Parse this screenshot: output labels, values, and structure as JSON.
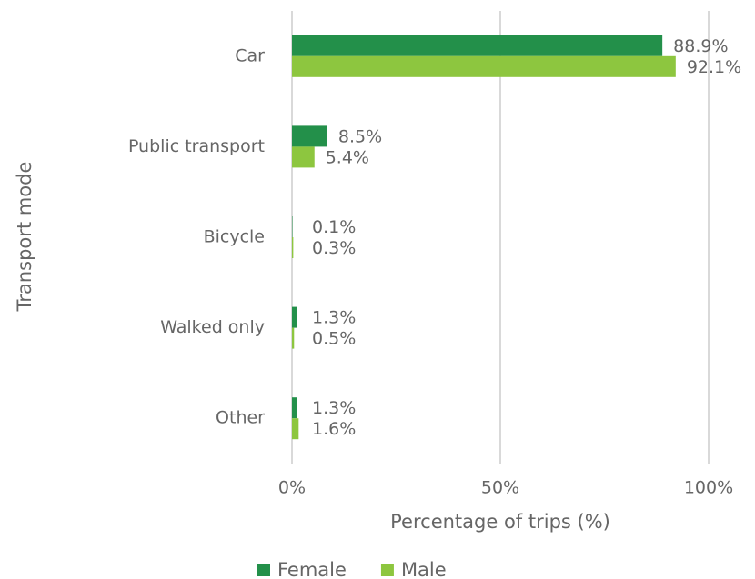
{
  "chart_data": {
    "type": "hbar",
    "x_label": "Percentage of trips (%)",
    "y_label": "Transport mode",
    "categories": [
      "Car",
      "Public transport",
      "Bicycle",
      "Walked only",
      "Other"
    ],
    "series": [
      {
        "name": "Female",
        "color": "#23904a",
        "values": [
          88.9,
          8.5,
          0.1,
          1.3,
          1.3
        ],
        "value_labels": [
          "88.9%",
          "8.5%",
          "0.1%",
          "1.3%",
          "1.3%"
        ]
      },
      {
        "name": "Male",
        "color": "#8dc63f",
        "values": [
          92.1,
          5.4,
          0.3,
          0.5,
          1.6
        ],
        "value_labels": [
          "92.1%",
          "5.4%",
          "0.3%",
          "0.5%",
          "1.6%"
        ]
      }
    ],
    "xlim": [
      0,
      100
    ],
    "xticks": [
      {
        "value": 0,
        "label": "0%"
      },
      {
        "value": 50,
        "label": "50%"
      },
      {
        "value": 100,
        "label": "100%"
      }
    ],
    "grid": true,
    "legend": "bottom"
  }
}
